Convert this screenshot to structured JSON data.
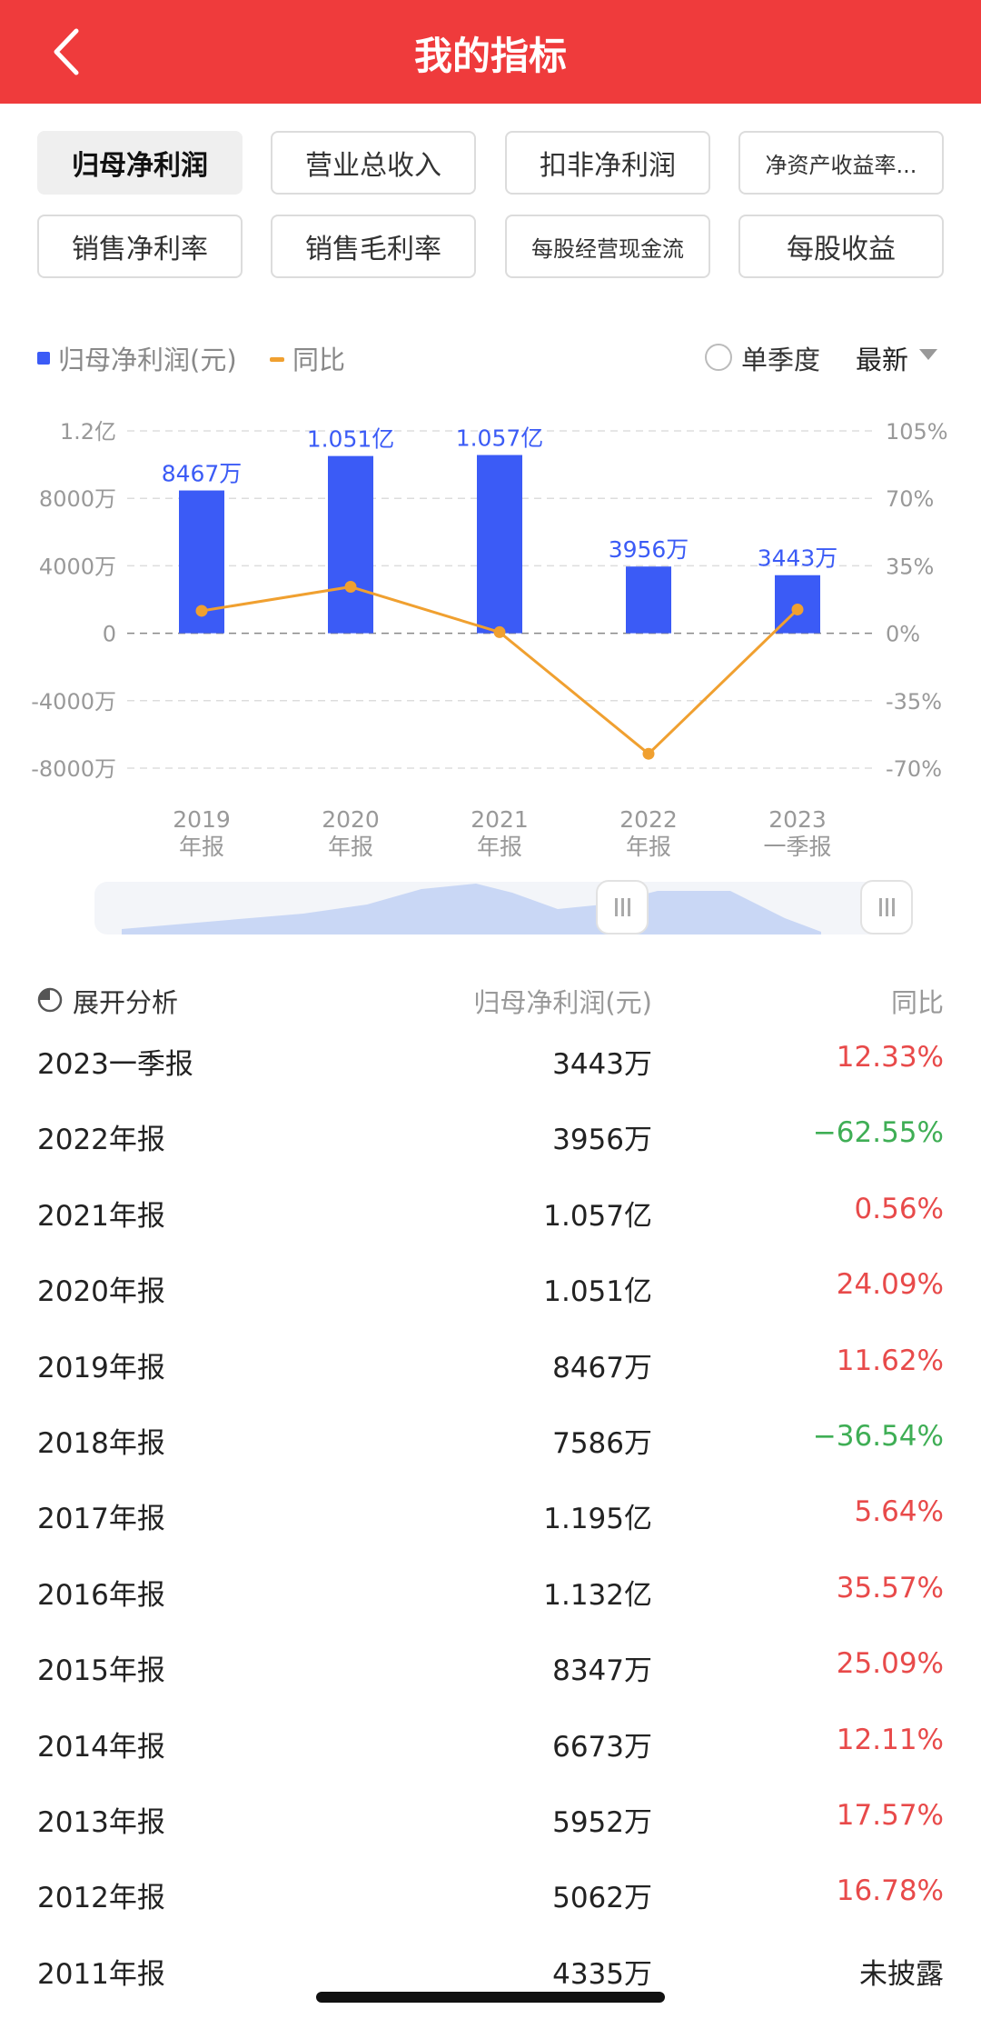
{
  "header": {
    "title": "我的指标"
  },
  "tabs": [
    {
      "label": "归母净利润",
      "active": true
    },
    {
      "label": "营业总收入",
      "active": false
    },
    {
      "label": "扣非净利润",
      "active": false
    },
    {
      "label": "净资产收益率...",
      "active": false
    },
    {
      "label": "销售净利率",
      "active": false
    },
    {
      "label": "销售毛利率",
      "active": false
    },
    {
      "label": "每股经营现金流",
      "active": false
    },
    {
      "label": "每股收益",
      "active": false
    }
  ],
  "legend": {
    "series1": "归母净利润(元)",
    "series2": "同比",
    "quarter": "单季度",
    "latest": "最新"
  },
  "colors": {
    "bar": "#3b5bf6",
    "line": "#f0a030",
    "header": "#ef3b3c",
    "positive": "#e84a4a",
    "negative": "#3fae55"
  },
  "chart_data": {
    "type": "bar",
    "categories": [
      "2019\n年报",
      "2020\n年报",
      "2021\n年报",
      "2022\n年报",
      "2023\n一季报"
    ],
    "series": [
      {
        "name": "归母净利润(元)",
        "type": "bar",
        "values": [
          8467,
          10510,
          10570,
          3956,
          3443
        ],
        "labels": [
          "8467万",
          "1.051亿",
          "1.057亿",
          "3956万",
          "3443万"
        ]
      },
      {
        "name": "同比",
        "type": "line",
        "values": [
          11.62,
          24.09,
          0.56,
          -62.55,
          12.33
        ]
      }
    ],
    "left_axis": {
      "ticks": [
        12000,
        8000,
        4000,
        0,
        -4000,
        -8000
      ],
      "tick_labels": [
        "1.2亿",
        "8000万",
        "4000万",
        "0",
        "-4000万",
        "-8000万"
      ],
      "ylim": [
        -8000,
        12000
      ]
    },
    "right_axis": {
      "ticks": [
        105,
        70,
        35,
        0,
        -35,
        -70
      ],
      "tick_labels": [
        "105%",
        "70%",
        "35%",
        "0%",
        "-35%",
        "-70%"
      ],
      "ylim": [
        -70,
        105
      ]
    },
    "grid": true
  },
  "table": {
    "analysis_label": "展开分析",
    "value_header": "归母净利润(元)",
    "yoy_header": "同比",
    "rows": [
      {
        "period": "2023一季报",
        "value": "3443万",
        "yoy": "12.33%",
        "sign": "pos"
      },
      {
        "period": "2022年报",
        "value": "3956万",
        "yoy": "−62.55%",
        "sign": "neg"
      },
      {
        "period": "2021年报",
        "value": "1.057亿",
        "yoy": "0.56%",
        "sign": "pos"
      },
      {
        "period": "2020年报",
        "value": "1.051亿",
        "yoy": "24.09%",
        "sign": "pos"
      },
      {
        "period": "2019年报",
        "value": "8467万",
        "yoy": "11.62%",
        "sign": "pos"
      },
      {
        "period": "2018年报",
        "value": "7586万",
        "yoy": "−36.54%",
        "sign": "neg"
      },
      {
        "period": "2017年报",
        "value": "1.195亿",
        "yoy": "5.64%",
        "sign": "pos"
      },
      {
        "period": "2016年报",
        "value": "1.132亿",
        "yoy": "35.57%",
        "sign": "pos"
      },
      {
        "period": "2015年报",
        "value": "8347万",
        "yoy": "25.09%",
        "sign": "pos"
      },
      {
        "period": "2014年报",
        "value": "6673万",
        "yoy": "12.11%",
        "sign": "pos"
      },
      {
        "period": "2013年报",
        "value": "5952万",
        "yoy": "17.57%",
        "sign": "pos"
      },
      {
        "period": "2012年报",
        "value": "5062万",
        "yoy": "16.78%",
        "sign": "pos"
      },
      {
        "period": "2011年报",
        "value": "4335万",
        "yoy": "未披露",
        "sign": "neutral"
      }
    ]
  }
}
